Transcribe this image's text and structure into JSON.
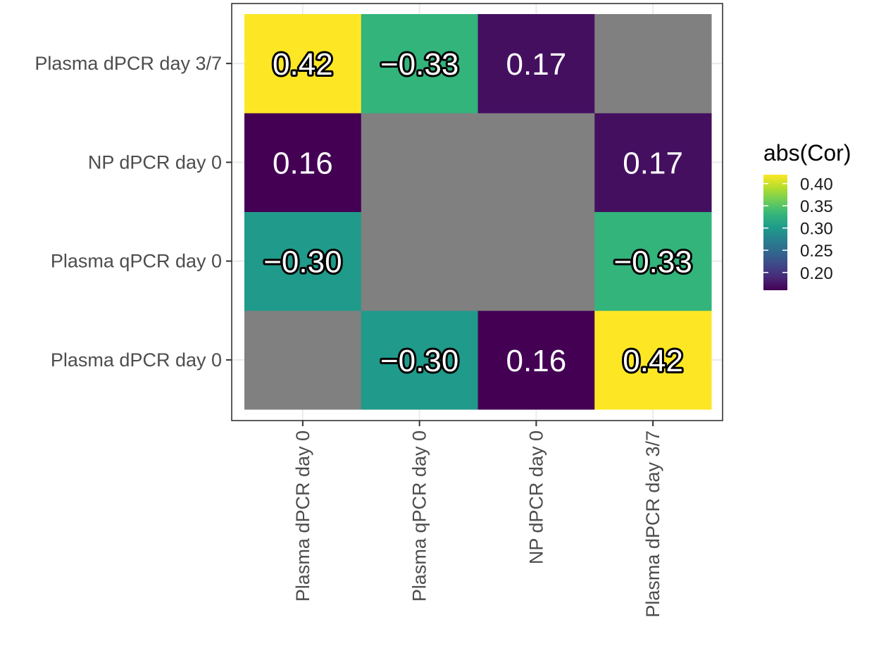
{
  "chart_data": {
    "type": "heatmap",
    "x_categories": [
      "Plasma dPCR day 0",
      "Plasma qPCR day 0",
      "NP dPCR day 0",
      "Plasma dPCR day 3/7"
    ],
    "y_categories": [
      "Plasma dPCR day 0",
      "Plasma qPCR day 0",
      "NP dPCR day 0",
      "Plasma dPCR day 3/7"
    ],
    "cells": [
      {
        "x": "Plasma dPCR day 0",
        "y": "Plasma dPCR day 0",
        "value": null,
        "label": ""
      },
      {
        "x": "Plasma qPCR day 0",
        "y": "Plasma dPCR day 0",
        "value": -0.3,
        "label": "−0.30"
      },
      {
        "x": "NP dPCR day 0",
        "y": "Plasma dPCR day 0",
        "value": 0.16,
        "label": "0.16"
      },
      {
        "x": "Plasma dPCR day 3/7",
        "y": "Plasma dPCR day 0",
        "value": 0.42,
        "label": "0.42"
      },
      {
        "x": "Plasma dPCR day 0",
        "y": "Plasma qPCR day 0",
        "value": -0.3,
        "label": "−0.30"
      },
      {
        "x": "Plasma qPCR day 0",
        "y": "Plasma qPCR day 0",
        "value": null,
        "label": ""
      },
      {
        "x": "NP dPCR day 0",
        "y": "Plasma qPCR day 0",
        "value": null,
        "label": ""
      },
      {
        "x": "Plasma dPCR day 3/7",
        "y": "Plasma qPCR day 0",
        "value": -0.33,
        "label": "−0.33"
      },
      {
        "x": "Plasma dPCR day 0",
        "y": "NP dPCR day 0",
        "value": 0.16,
        "label": "0.16"
      },
      {
        "x": "Plasma qPCR day 0",
        "y": "NP dPCR day 0",
        "value": null,
        "label": ""
      },
      {
        "x": "NP dPCR day 0",
        "y": "NP dPCR day 0",
        "value": null,
        "label": ""
      },
      {
        "x": "Plasma dPCR day 3/7",
        "y": "NP dPCR day 0",
        "value": 0.17,
        "label": "0.17"
      },
      {
        "x": "Plasma dPCR day 0",
        "y": "Plasma dPCR day 3/7",
        "value": 0.42,
        "label": "0.42"
      },
      {
        "x": "Plasma qPCR day 0",
        "y": "Plasma dPCR day 3/7",
        "value": -0.33,
        "label": "−0.33"
      },
      {
        "x": "NP dPCR day 0",
        "y": "Plasma dPCR day 3/7",
        "value": 0.17,
        "label": "0.17"
      },
      {
        "x": "Plasma dPCR day 3/7",
        "y": "Plasma dPCR day 3/7",
        "value": null,
        "label": ""
      }
    ],
    "fill_variable": "abs",
    "na_color": "#808080",
    "colorscale": "viridis",
    "color_range": [
      0.16,
      0.42
    ],
    "legend": {
      "title": "abs(Cor)",
      "ticks": [
        0.4,
        0.35,
        0.3,
        0.25,
        0.2
      ],
      "tick_labels": [
        "0.40",
        "0.35",
        "0.30",
        "0.25",
        "0.20"
      ],
      "placement": "right"
    },
    "title": "",
    "xlabel": "",
    "ylabel": "",
    "grid": true
  }
}
